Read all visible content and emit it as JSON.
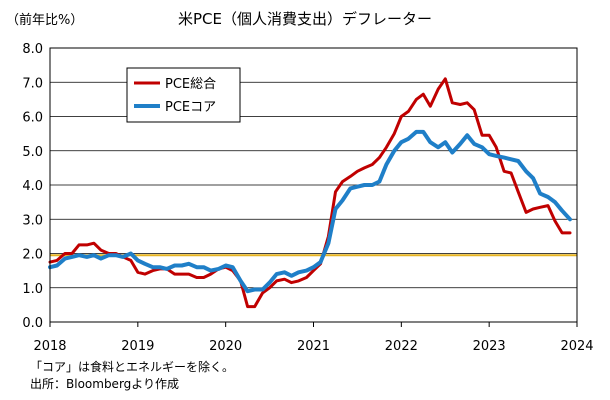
{
  "chart_data": {
    "type": "line",
    "title": "米PCE（個人消費支出）デフレーター",
    "ylabel": "（前年比%）",
    "xlabel": "",
    "ylim": [
      0,
      8
    ],
    "xlim": [
      2018.0,
      2024.0
    ],
    "y_ticks": [
      "0.0",
      "1.0",
      "2.0",
      "3.0",
      "4.0",
      "5.0",
      "6.0",
      "7.0",
      "8.0"
    ],
    "x_ticks": [
      "2018",
      "2019",
      "2020",
      "2021",
      "2022",
      "2023",
      "2024"
    ],
    "grid": true,
    "legend_position": "top-left",
    "reference_line": {
      "y": 1.95,
      "color": "#e6b422"
    },
    "series": [
      {
        "name": "PCE総合",
        "color": "#c00000",
        "x": [
          2018.0,
          2018.08,
          2018.17,
          2018.25,
          2018.33,
          2018.42,
          2018.5,
          2018.58,
          2018.67,
          2018.75,
          2018.83,
          2018.92,
          2019.0,
          2019.08,
          2019.17,
          2019.25,
          2019.33,
          2019.42,
          2019.5,
          2019.58,
          2019.67,
          2019.75,
          2019.83,
          2019.92,
          2020.0,
          2020.08,
          2020.17,
          2020.25,
          2020.33,
          2020.42,
          2020.5,
          2020.58,
          2020.67,
          2020.75,
          2020.83,
          2020.92,
          2021.0,
          2021.08,
          2021.17,
          2021.25,
          2021.33,
          2021.42,
          2021.5,
          2021.58,
          2021.67,
          2021.75,
          2021.83,
          2021.92,
          2022.0,
          2022.08,
          2022.17,
          2022.25,
          2022.33,
          2022.42,
          2022.5,
          2022.58,
          2022.67,
          2022.75,
          2022.83,
          2022.92,
          2023.0,
          2023.08,
          2023.17,
          2023.25,
          2023.33,
          2023.42,
          2023.5,
          2023.58,
          2023.67,
          2023.75,
          2023.83,
          2023.92
        ],
        "values": [
          1.75,
          1.8,
          2.0,
          2.0,
          2.25,
          2.25,
          2.3,
          2.1,
          2.0,
          2.0,
          1.9,
          1.8,
          1.45,
          1.4,
          1.5,
          1.55,
          1.55,
          1.4,
          1.4,
          1.4,
          1.3,
          1.3,
          1.4,
          1.55,
          1.6,
          1.5,
          1.2,
          0.45,
          0.45,
          0.85,
          1.0,
          1.2,
          1.25,
          1.15,
          1.2,
          1.3,
          1.5,
          1.7,
          2.5,
          3.8,
          4.1,
          4.25,
          4.4,
          4.5,
          4.6,
          4.8,
          5.1,
          5.5,
          6.0,
          6.15,
          6.5,
          6.65,
          6.3,
          6.8,
          7.1,
          6.4,
          6.35,
          6.4,
          6.2,
          5.45,
          5.45,
          5.1,
          4.4,
          4.35,
          3.8,
          3.2,
          3.3,
          3.35,
          3.4,
          2.95,
          2.6,
          2.6
        ]
      },
      {
        "name": "PCEコア",
        "color": "#1f7fc8",
        "x": [
          2018.0,
          2018.08,
          2018.17,
          2018.25,
          2018.33,
          2018.42,
          2018.5,
          2018.58,
          2018.67,
          2018.75,
          2018.83,
          2018.92,
          2019.0,
          2019.08,
          2019.17,
          2019.25,
          2019.33,
          2019.42,
          2019.5,
          2019.58,
          2019.67,
          2019.75,
          2019.83,
          2019.92,
          2020.0,
          2020.08,
          2020.17,
          2020.25,
          2020.33,
          2020.42,
          2020.5,
          2020.58,
          2020.67,
          2020.75,
          2020.83,
          2020.92,
          2021.0,
          2021.08,
          2021.17,
          2021.25,
          2021.33,
          2021.42,
          2021.5,
          2021.58,
          2021.67,
          2021.75,
          2021.83,
          2021.92,
          2022.0,
          2022.08,
          2022.17,
          2022.25,
          2022.33,
          2022.42,
          2022.5,
          2022.58,
          2022.67,
          2022.75,
          2022.83,
          2022.92,
          2023.0,
          2023.08,
          2023.17,
          2023.25,
          2023.33,
          2023.42,
          2023.5,
          2023.58,
          2023.67,
          2023.75,
          2023.83,
          2023.92
        ],
        "values": [
          1.6,
          1.65,
          1.85,
          1.9,
          1.95,
          1.9,
          1.95,
          1.85,
          1.95,
          1.95,
          1.9,
          2.0,
          1.8,
          1.7,
          1.6,
          1.6,
          1.55,
          1.65,
          1.65,
          1.7,
          1.6,
          1.6,
          1.5,
          1.55,
          1.65,
          1.6,
          1.2,
          0.9,
          0.95,
          0.95,
          1.15,
          1.4,
          1.45,
          1.35,
          1.45,
          1.5,
          1.6,
          1.75,
          2.3,
          3.3,
          3.55,
          3.9,
          3.95,
          4.0,
          4.0,
          4.1,
          4.6,
          5.0,
          5.25,
          5.35,
          5.55,
          5.55,
          5.25,
          5.1,
          5.25,
          4.95,
          5.2,
          5.45,
          5.2,
          5.1,
          4.9,
          4.85,
          4.8,
          4.75,
          4.7,
          4.4,
          4.2,
          3.75,
          3.65,
          3.5,
          3.25,
          3.0
        ]
      }
    ],
    "notes": [
      "「コア」は食料とエネルギーを除く。",
      "出所：Bloombergより作成"
    ]
  }
}
